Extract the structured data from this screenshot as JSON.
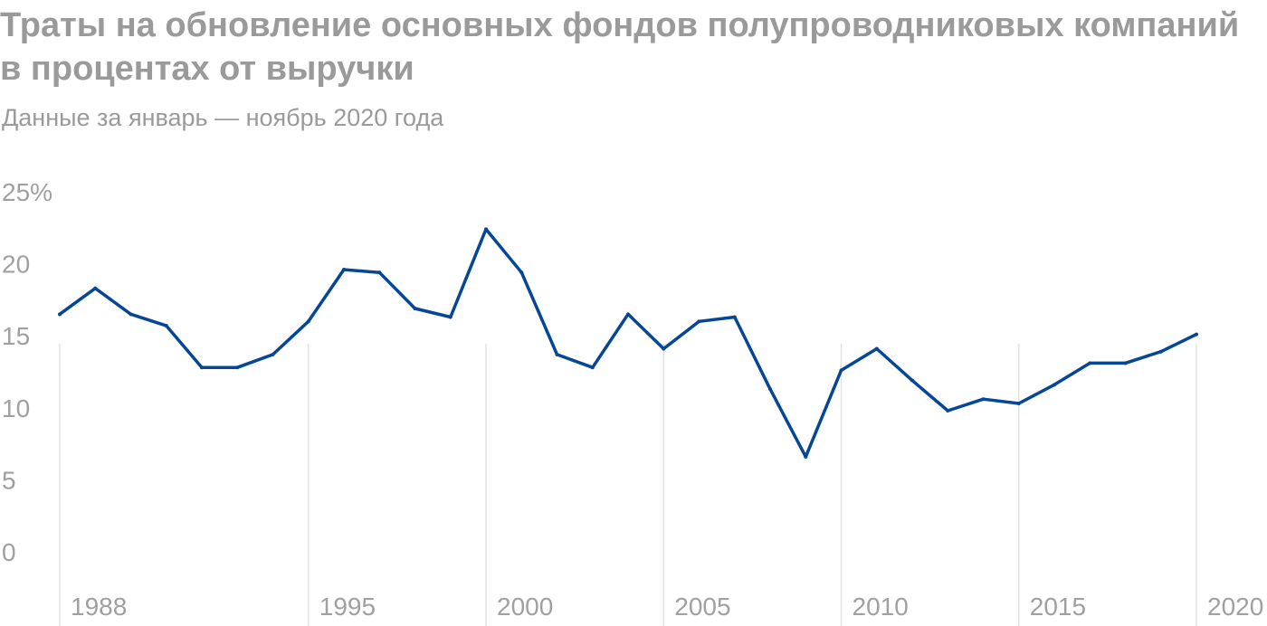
{
  "chart_data": {
    "type": "line",
    "title": "Траты на обновление основных фондов полупроводниковых компаний в процентах от выручки",
    "subtitle": "Данные за январь — ноябрь 2020 года",
    "xlabel": "",
    "ylabel": "",
    "ylim": [
      0,
      25
    ],
    "y_ticks": [
      {
        "value": 0,
        "label": "0"
      },
      {
        "value": 5,
        "label": "5"
      },
      {
        "value": 10,
        "label": "10"
      },
      {
        "value": 15,
        "label": "15"
      },
      {
        "value": 20,
        "label": "20"
      },
      {
        "value": 25,
        "label": "25%"
      }
    ],
    "x_ticks": [
      {
        "value": 1988,
        "label": "1988"
      },
      {
        "value": 1995,
        "label": "1995"
      },
      {
        "value": 2000,
        "label": "2000"
      },
      {
        "value": 2005,
        "label": "2005"
      },
      {
        "value": 2010,
        "label": "2010"
      },
      {
        "value": 2015,
        "label": "2015"
      },
      {
        "value": 2020,
        "label": "2020"
      }
    ],
    "grid": "vertical",
    "color": "#054696",
    "x": [
      1988,
      1989,
      1990,
      1991,
      1992,
      1993,
      1994,
      1995,
      1996,
      1997,
      1998,
      1999,
      2000,
      2001,
      2002,
      2003,
      2004,
      2005,
      2006,
      2007,
      2008,
      2009,
      2010,
      2011,
      2012,
      2013,
      2014,
      2015,
      2016,
      2017,
      2018,
      2019,
      2020
    ],
    "series": [
      {
        "values": [
          16.5,
          18.3,
          16.5,
          15.7,
          12.8,
          12.8,
          13.7,
          16.0,
          19.6,
          19.4,
          16.9,
          16.3,
          22.4,
          19.4,
          13.7,
          12.8,
          16.5,
          14.1,
          16.0,
          16.3,
          11.3,
          6.6,
          12.6,
          14.1,
          11.9,
          9.8,
          10.6,
          10.3,
          11.6,
          13.1,
          13.1,
          13.9,
          15.1
        ]
      }
    ]
  }
}
